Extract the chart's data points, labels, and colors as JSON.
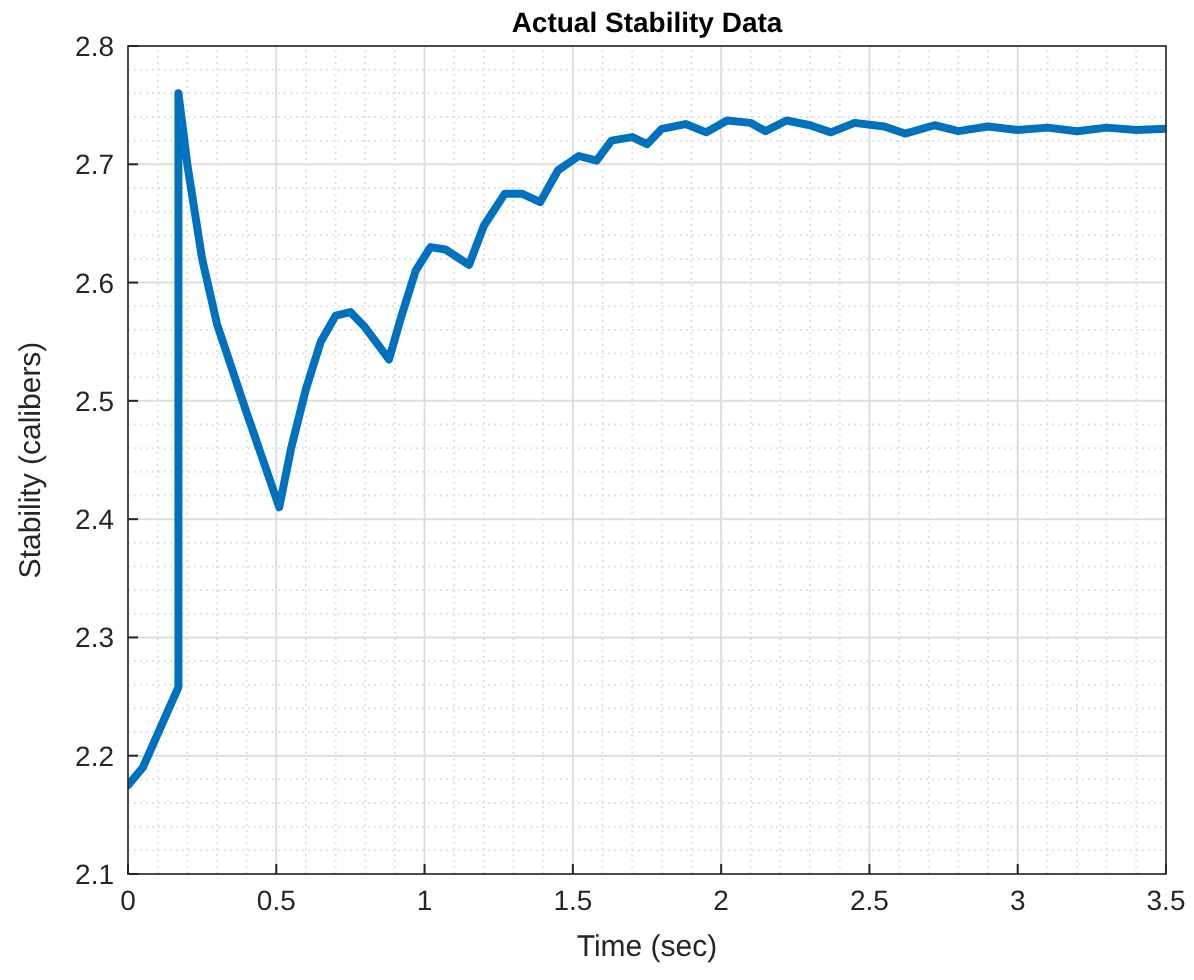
{
  "chart_data": {
    "type": "line",
    "title": "Actual Stability Data",
    "xlabel": "Time (sec)",
    "ylabel": "Stability (calibers)",
    "xlim": [
      0,
      3.5
    ],
    "xticks": [
      0,
      0.5,
      1,
      1.5,
      2,
      2.5,
      3,
      3.5
    ],
    "ylim": [
      2.1,
      2.8
    ],
    "yticks": [
      2.1,
      2.2,
      2.3,
      2.4,
      2.5,
      2.6,
      2.7,
      2.8
    ],
    "grid": true,
    "series": [
      {
        "color": "#0072bd",
        "x": [
          0,
          0.05,
          0.17,
          0.17,
          0.2,
          0.25,
          0.3,
          0.4,
          0.51,
          0.55,
          0.6,
          0.65,
          0.7,
          0.75,
          0.8,
          0.88,
          0.92,
          0.97,
          1.02,
          1.07,
          1.15,
          1.2,
          1.27,
          1.33,
          1.39,
          1.45,
          1.52,
          1.58,
          1.63,
          1.7,
          1.75,
          1.8,
          1.88,
          1.95,
          2.02,
          2.1,
          2.15,
          2.22,
          2.3,
          2.37,
          2.45,
          2.55,
          2.62,
          2.72,
          2.8,
          2.9,
          3.0,
          3.1,
          3.2,
          3.3,
          3.4,
          3.5
        ],
        "values": [
          2.175,
          2.19,
          2.258,
          2.76,
          2.7,
          2.62,
          2.565,
          2.49,
          2.41,
          2.46,
          2.51,
          2.55,
          2.572,
          2.575,
          2.562,
          2.535,
          2.57,
          2.61,
          2.63,
          2.628,
          2.615,
          2.648,
          2.675,
          2.675,
          2.668,
          2.695,
          2.707,
          2.703,
          2.72,
          2.723,
          2.717,
          2.73,
          2.734,
          2.727,
          2.737,
          2.735,
          2.728,
          2.737,
          2.733,
          2.727,
          2.735,
          2.732,
          2.726,
          2.733,
          2.728,
          2.732,
          2.729,
          2.731,
          2.728,
          2.731,
          2.729,
          2.73
        ]
      }
    ]
  }
}
